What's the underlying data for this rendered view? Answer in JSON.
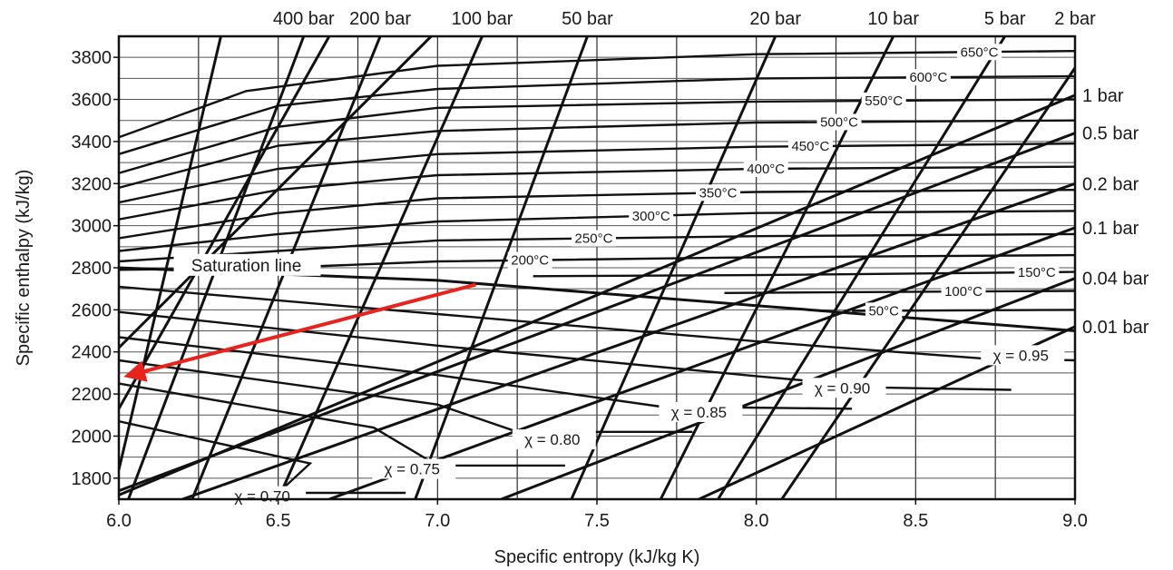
{
  "chart_data": {
    "type": "line",
    "xlabel": "Specific entropy (kJ/kg K)",
    "ylabel": "Specific enthalpy (kJ/kg)",
    "xlim": [
      6.0,
      9.0
    ],
    "ylim": [
      1700,
      3900
    ],
    "xticks": [
      {
        "value": 6.0,
        "label": "6.0"
      },
      {
        "value": 6.5,
        "label": "6.5"
      },
      {
        "value": 7.0,
        "label": "7.0"
      },
      {
        "value": 7.5,
        "label": "7.5"
      },
      {
        "value": 8.0,
        "label": "8.0"
      },
      {
        "value": 8.5,
        "label": "8.5"
      },
      {
        "value": 9.0,
        "label": "9.0"
      }
    ],
    "yticks": [
      {
        "value": 1800,
        "label": "1800"
      },
      {
        "value": 2000,
        "label": "2000"
      },
      {
        "value": 2200,
        "label": "2200"
      },
      {
        "value": 2400,
        "label": "2400"
      },
      {
        "value": 2600,
        "label": "2600"
      },
      {
        "value": 2800,
        "label": "2800"
      },
      {
        "value": 3000,
        "label": "3000"
      },
      {
        "value": 3200,
        "label": "3200"
      },
      {
        "value": 3400,
        "label": "3400"
      },
      {
        "value": 3600,
        "label": "3600"
      },
      {
        "value": 3800,
        "label": "3800"
      }
    ],
    "grid": true,
    "grid_x": [
      6.25,
      6.5,
      6.75,
      7.0,
      7.25,
      7.5,
      7.75,
      8.0,
      8.25,
      8.5,
      8.75
    ],
    "grid_y": [
      1800,
      1900,
      2000,
      2100,
      2200,
      2300,
      2400,
      2500,
      2600,
      2700,
      2800,
      2900,
      3000,
      3100,
      3200,
      3300,
      3400,
      3500,
      3600,
      3700,
      3800
    ],
    "isobars_top": [
      {
        "label": "400 bar",
        "x1": 6.03,
        "y1": 1700,
        "x2": 6.58,
        "y2": 3900
      },
      {
        "label": "200 bar",
        "x1": 6.23,
        "y1": 1700,
        "x2": 6.82,
        "y2": 3900
      },
      {
        "label": "100 bar",
        "x1": 6.5,
        "y1": 1700,
        "x2": 7.14,
        "y2": 3900
      },
      {
        "label": "50 bar",
        "x1": 6.93,
        "y1": 1700,
        "x2": 7.47,
        "y2": 3900
      },
      {
        "label": "20 bar",
        "x1": 7.42,
        "y1": 1700,
        "x2": 8.06,
        "y2": 3900
      },
      {
        "label": "10 bar",
        "x1": 7.7,
        "y1": 1700,
        "x2": 8.43,
        "y2": 3900
      },
      {
        "label": "5 bar",
        "x1": 7.88,
        "y1": 1700,
        "x2": 8.78,
        "y2": 3900
      },
      {
        "label": "2 bar",
        "x1": 8.08,
        "y1": 1700,
        "x2": 9.0,
        "y2": 3750
      }
    ],
    "isobars_extra": [
      {
        "x1": 6.0,
        "y1": 1840,
        "x2": 6.32,
        "y2": 3900
      },
      {
        "x1": 6.0,
        "y1": 2130,
        "x2": 6.66,
        "y2": 3900
      },
      {
        "x1": 6.0,
        "y1": 2420,
        "x2": 6.98,
        "y2": 3900
      }
    ],
    "isobars_right": [
      {
        "label": "1 bar",
        "x1": 6.0,
        "y1": 1720,
        "x2": 9.0,
        "y2": 3620
      },
      {
        "label": "0.5 bar",
        "x1": 6.0,
        "y1": 1740,
        "x2": 9.0,
        "y2": 3440
      },
      {
        "label": "0.2 bar",
        "x1": 6.2,
        "y1": 1700,
        "x2": 9.0,
        "y2": 3200
      },
      {
        "label": "0.1 bar",
        "x1": 6.66,
        "y1": 1700,
        "x2": 9.0,
        "y2": 2990
      },
      {
        "label": "0.04 bar",
        "x1": 7.2,
        "y1": 1700,
        "x2": 9.0,
        "y2": 2750
      },
      {
        "label": "0.01 bar",
        "x1": 7.82,
        "y1": 1700,
        "x2": 9.0,
        "y2": 2520
      }
    ],
    "isotherms": [
      {
        "label": "650°C",
        "points": [
          [
            6.0,
            3420
          ],
          [
            6.4,
            3640
          ],
          [
            7.0,
            3760
          ],
          [
            8.0,
            3815
          ],
          [
            9.0,
            3830
          ]
        ],
        "label_x": 8.7
      },
      {
        "label": "600°C",
        "points": [
          [
            6.0,
            3340
          ],
          [
            6.5,
            3570
          ],
          [
            7.0,
            3650
          ],
          [
            8.0,
            3700
          ],
          [
            9.0,
            3710
          ]
        ],
        "label_x": 8.54
      },
      {
        "label": "550°C",
        "points": [
          [
            6.0,
            3250
          ],
          [
            6.5,
            3470
          ],
          [
            7.0,
            3560
          ],
          [
            8.0,
            3590
          ],
          [
            9.0,
            3600
          ]
        ],
        "label_x": 8.4
      },
      {
        "label": "500°C",
        "points": [
          [
            6.0,
            3180
          ],
          [
            6.5,
            3380
          ],
          [
            7.0,
            3450
          ],
          [
            8.0,
            3490
          ],
          [
            9.0,
            3500
          ]
        ],
        "label_x": 8.26
      },
      {
        "label": "450°C",
        "points": [
          [
            6.0,
            3110
          ],
          [
            6.5,
            3270
          ],
          [
            7.0,
            3340
          ],
          [
            8.0,
            3375
          ],
          [
            9.0,
            3390
          ]
        ],
        "label_x": 8.17
      },
      {
        "label": "400°C",
        "points": [
          [
            6.0,
            3030
          ],
          [
            6.5,
            3170
          ],
          [
            7.0,
            3240
          ],
          [
            8.0,
            3270
          ],
          [
            9.0,
            3280
          ]
        ],
        "label_x": 8.03
      },
      {
        "label": "350°C",
        "points": [
          [
            6.0,
            2940
          ],
          [
            6.5,
            3060
          ],
          [
            7.0,
            3130
          ],
          [
            8.0,
            3160
          ],
          [
            9.0,
            3170
          ]
        ],
        "label_x": 7.88
      },
      {
        "label": "300°C",
        "points": [
          [
            6.0,
            2880
          ],
          [
            6.5,
            2960
          ],
          [
            7.0,
            3020
          ],
          [
            8.0,
            3060
          ],
          [
            9.0,
            3070
          ]
        ],
        "label_x": 7.67
      },
      {
        "label": "250°C",
        "points": [
          [
            6.0,
            2830
          ],
          [
            6.5,
            2880
          ],
          [
            7.0,
            2930
          ],
          [
            8.0,
            2950
          ],
          [
            9.0,
            2960
          ]
        ],
        "label_x": 7.49
      },
      {
        "label": "200°C",
        "points": [
          [
            6.0,
            2790
          ],
          [
            6.5,
            2800
          ],
          [
            7.0,
            2830
          ],
          [
            8.0,
            2850
          ],
          [
            9.0,
            2860
          ]
        ],
        "label_x": 7.29
      },
      {
        "label": "150°C",
        "points": [
          [
            7.3,
            2760
          ],
          [
            8.0,
            2765
          ],
          [
            9.0,
            2780
          ]
        ],
        "label_x": 8.88
      },
      {
        "label": "100°C",
        "points": [
          [
            7.9,
            2680
          ],
          [
            8.4,
            2685
          ],
          [
            9.0,
            2690
          ]
        ],
        "label_x": 8.65
      },
      {
        "label": "50°C",
        "points": [
          [
            8.3,
            2595
          ],
          [
            9.0,
            2600
          ]
        ],
        "label_x": 8.4
      }
    ],
    "saturation_line": {
      "label": "Saturation line",
      "points": [
        [
          6.0,
          2800
        ],
        [
          7.0,
          2740
        ],
        [
          8.0,
          2620
        ],
        [
          9.0,
          2500
        ]
      ],
      "label_x": 6.4,
      "label_y": 2805
    },
    "quality_lines": [
      {
        "label": "χ = 0.95",
        "points": [
          [
            6.0,
            2710
          ],
          [
            7.0,
            2580
          ],
          [
            8.0,
            2450
          ],
          [
            8.7,
            2370
          ],
          [
            9.0,
            2360
          ]
        ],
        "label_x": 8.83,
        "label_y": 2380
      },
      {
        "label": "χ = 0.90",
        "points": [
          [
            6.0,
            2590
          ],
          [
            7.0,
            2430
          ],
          [
            8.0,
            2285
          ],
          [
            8.4,
            2230
          ],
          [
            8.8,
            2220
          ]
        ],
        "label_x": 8.27,
        "label_y": 2225
      },
      {
        "label": "χ = 0.85",
        "points": [
          [
            6.0,
            2470
          ],
          [
            7.0,
            2290
          ],
          [
            7.7,
            2140
          ],
          [
            8.3,
            2130
          ]
        ],
        "label_x": 7.82,
        "label_y": 2110
      },
      {
        "label": "χ = 0.80",
        "points": [
          [
            6.0,
            2360
          ],
          [
            7.0,
            2150
          ],
          [
            7.25,
            2020
          ],
          [
            7.8,
            2020
          ]
        ],
        "label_x": 7.36,
        "label_y": 1980
      },
      {
        "label": "χ = 0.75",
        "points": [
          [
            6.0,
            2250
          ],
          [
            6.8,
            2040
          ],
          [
            7.0,
            1860
          ],
          [
            7.4,
            1860
          ]
        ],
        "label_x": 6.92,
        "label_y": 1840
      },
      {
        "label": "χ = 0.70",
        "points": [
          [
            6.0,
            2070
          ],
          [
            6.6,
            1870
          ],
          [
            6.5,
            1730
          ],
          [
            6.9,
            1730
          ]
        ],
        "label_x": 6.45,
        "label_y": 1710
      }
    ],
    "arrow": {
      "color": "#e8231d",
      "from": [
        7.12,
        2720
      ],
      "to": [
        6.0,
        2270
      ]
    }
  }
}
